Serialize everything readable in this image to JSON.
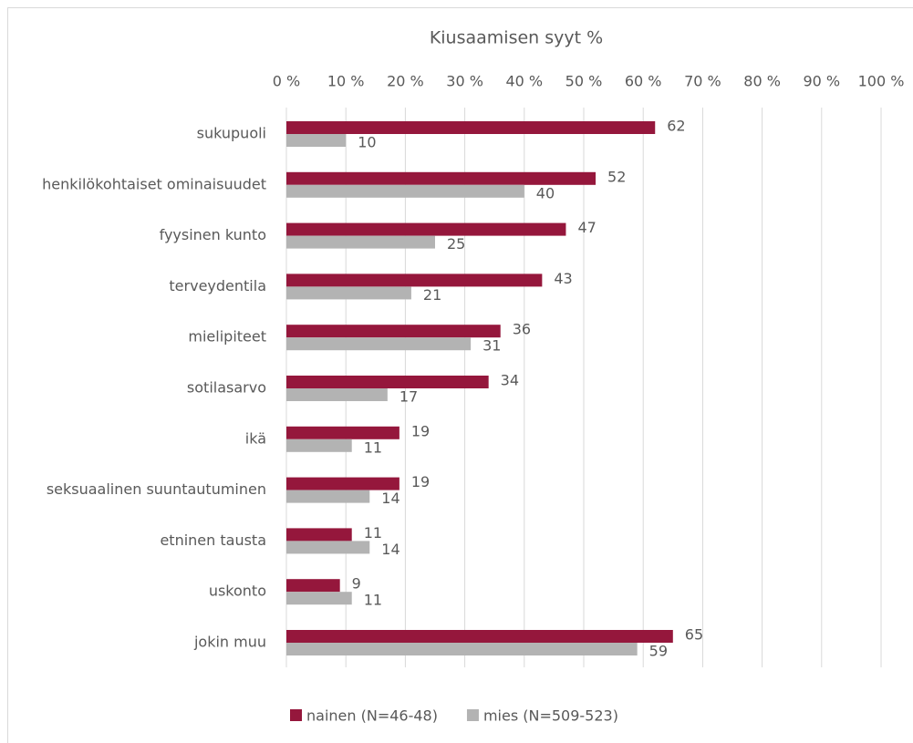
{
  "chart_data": {
    "type": "bar",
    "orientation": "horizontal",
    "title": "Kiusaamisen syyt %",
    "categories": [
      "sukupuoli",
      "henkilökohtaiset ominaisuudet",
      "fyysinen kunto",
      "terveydentila",
      "mielipiteet",
      "sotilasarvo",
      "ikä",
      "seksuaalinen suuntautuminen",
      "etninen tausta",
      "uskonto",
      "jokin muu"
    ],
    "series": [
      {
        "name": "nainen (N=46-48)",
        "color": "#95173c",
        "values": [
          62,
          52,
          47,
          43,
          36,
          34,
          19,
          19,
          11,
          9,
          65
        ]
      },
      {
        "name": "mies (N=509-523)",
        "color": "#b3b3b3",
        "values": [
          10,
          40,
          25,
          21,
          31,
          17,
          11,
          14,
          14,
          11,
          59
        ]
      }
    ],
    "xlim": [
      0,
      100
    ],
    "xticks": [
      {
        "value": 0,
        "label": "0 %"
      },
      {
        "value": 10,
        "label": "10 %"
      },
      {
        "value": 20,
        "label": "20 %"
      },
      {
        "value": 30,
        "label": "30 %"
      },
      {
        "value": 40,
        "label": "40 %"
      },
      {
        "value": 50,
        "label": "50 %"
      },
      {
        "value": 60,
        "label": "60 %"
      },
      {
        "value": 70,
        "label": "70 %"
      },
      {
        "value": 80,
        "label": "80 %"
      },
      {
        "value": 90,
        "label": "90 %"
      },
      {
        "value": 100,
        "label": "100 %"
      }
    ],
    "grid": true,
    "legend": "bottom"
  }
}
